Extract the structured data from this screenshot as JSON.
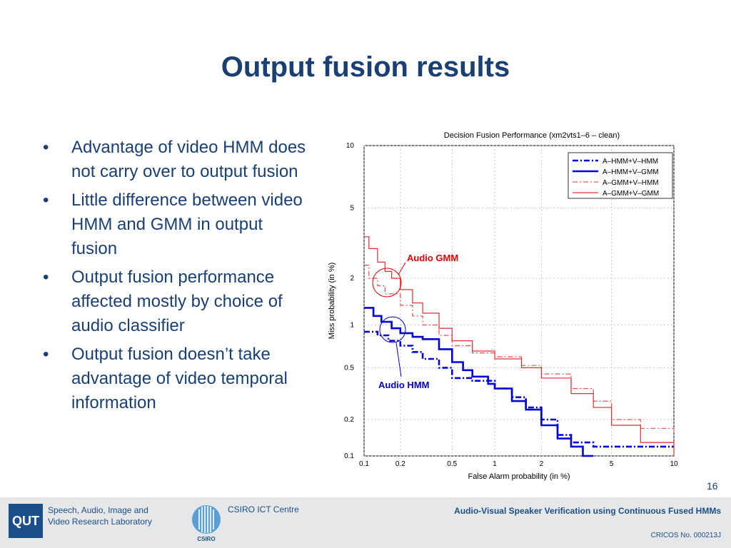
{
  "slide": {
    "title": "Output fusion results",
    "page_number": "16"
  },
  "bullets": [
    "Advantage of video HMM does not carry over to output fusion",
    "Little difference between video HMM and GMM in output fusion",
    "Output fusion performance affected mostly by choice of audio classifier",
    "Output fusion doesn’t take advantage of video temporal information"
  ],
  "footer": {
    "logo_text": "QUT",
    "lab_line1": "Speech, Audio, Image and",
    "lab_line2": "Video Research Laboratory",
    "csiro_text": "CSIRO ICT Centre",
    "csiro_logo_text": "CSIRO",
    "talk_title": "Audio-Visual Speaker Verification using Continuous Fused HMMs",
    "cricos": "CRICOS No. 000213J"
  },
  "chart_data": {
    "type": "line",
    "title": "Decision Fusion Performance (xm2vts1–6 – clean)",
    "xlabel": "False Alarm probability (in %)",
    "ylabel": "Miss probability (in %)",
    "xscale": "probit",
    "yscale": "probit",
    "xlim": [
      0.1,
      10
    ],
    "ylim": [
      0.1,
      10
    ],
    "xticks": [
      "0.1",
      "0.2",
      "0.5",
      "1",
      "2",
      "5",
      "10"
    ],
    "yticks": [
      "0.1",
      "0.2",
      "0.5",
      "1",
      "2",
      "5",
      "10"
    ],
    "grid": true,
    "legend_position": "top-right",
    "annotations": [
      {
        "text": "Audio GMM",
        "color": "#e00000"
      },
      {
        "text": "Audio HMM",
        "color": "#0000cc"
      }
    ],
    "series": [
      {
        "name": "A–HMM+V–HMM",
        "color": "#0000dd",
        "style": "dashdot-thick",
        "x": [
          0.1,
          0.13,
          0.16,
          0.2,
          0.25,
          0.3,
          0.4,
          0.5,
          0.7,
          1.0,
          1.3,
          1.6,
          2.0,
          2.5,
          3.0,
          4.0,
          5.0,
          10.0
        ],
        "y": [
          0.9,
          0.85,
          0.78,
          0.72,
          0.65,
          0.58,
          0.5,
          0.42,
          0.4,
          0.35,
          0.3,
          0.25,
          0.2,
          0.15,
          0.13,
          0.12,
          0.12,
          0.12
        ]
      },
      {
        "name": "A–HMM+V–GMM",
        "color": "#0000dd",
        "style": "solid-thick",
        "x": [
          0.1,
          0.12,
          0.14,
          0.17,
          0.2,
          0.25,
          0.3,
          0.4,
          0.5,
          0.6,
          0.7,
          0.9,
          1.0,
          1.3,
          1.6,
          2.0,
          2.5,
          3.0,
          3.5,
          4.0
        ],
        "y": [
          1.3,
          1.15,
          1.05,
          0.95,
          0.88,
          0.83,
          0.8,
          0.68,
          0.55,
          0.48,
          0.43,
          0.38,
          0.35,
          0.28,
          0.24,
          0.18,
          0.14,
          0.12,
          0.1,
          0.1
        ]
      },
      {
        "name": "A–GMM+V–HMM",
        "color": "#e05050",
        "style": "dashdot",
        "x": [
          0.1,
          0.11,
          0.13,
          0.15,
          0.2,
          0.25,
          0.3,
          0.4,
          0.5,
          0.7,
          1.0,
          1.5,
          2.0,
          3.0,
          4.0,
          5.0,
          7.0,
          10.0
        ],
        "y": [
          2.4,
          2.0,
          1.8,
          1.6,
          1.35,
          1.15,
          1.0,
          0.85,
          0.72,
          0.64,
          0.6,
          0.52,
          0.45,
          0.35,
          0.28,
          0.2,
          0.17,
          0.16
        ]
      },
      {
        "name": "A–GMM+V–GMM",
        "color": "#e03030",
        "style": "solid",
        "x": [
          0.1,
          0.11,
          0.13,
          0.15,
          0.17,
          0.2,
          0.25,
          0.3,
          0.4,
          0.5,
          0.7,
          1.0,
          1.5,
          2.0,
          3.0,
          4.0,
          5.0,
          7.0,
          10.0
        ],
        "y": [
          3.5,
          3.0,
          2.5,
          2.2,
          2.0,
          1.7,
          1.4,
          1.2,
          0.95,
          0.78,
          0.66,
          0.58,
          0.5,
          0.42,
          0.32,
          0.25,
          0.18,
          0.13,
          0.1
        ]
      }
    ]
  }
}
